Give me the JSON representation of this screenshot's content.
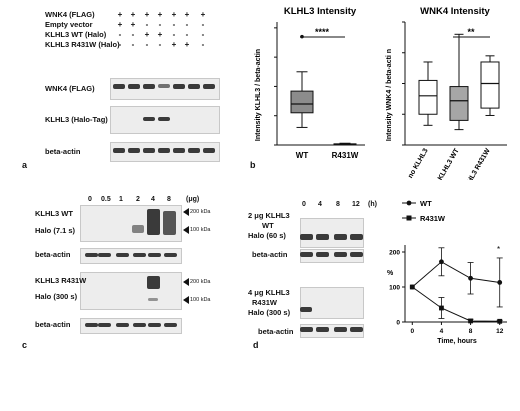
{
  "panel_a": {
    "letter": "a",
    "row_labels": [
      "WNK4 (FLAG)",
      "Empty vector",
      "KLHL3 WT (Halo)",
      "KLHL3 R431W (Halo)"
    ],
    "row_symbols": [
      [
        "+",
        "+",
        "+",
        "+",
        "+",
        "+",
        "+"
      ],
      [
        "+",
        "+",
        "-",
        "-",
        "-",
        "-",
        "-"
      ],
      [
        "-",
        "-",
        "+",
        "+",
        "-",
        "-",
        "-"
      ],
      [
        "-",
        "-",
        "-",
        "-",
        "+",
        "+",
        "-"
      ]
    ],
    "blot_labels": [
      "WNK4 (FLAG)",
      "KLHL3 (Halo-Tag)",
      "beta-actin"
    ]
  },
  "panel_b": {
    "letter": "b",
    "charts": [
      {
        "title": "KLHL3 Intensity",
        "ylabel": "Intensity KLHL3 / beta-actin",
        "categories": [
          "WT",
          "R431W"
        ],
        "significance": "****"
      },
      {
        "title": "WNK4 Intensity",
        "ylabel": "Intensity WNK4 / beta-acti n",
        "categories": [
          "no KLHL3",
          "KLHL3 WT",
          "KLHL3 R431W"
        ],
        "significance": "**"
      }
    ]
  },
  "panel_c": {
    "letter": "c",
    "doses": [
      "0",
      "0.5",
      "1",
      "2",
      "4",
      "8"
    ],
    "unit": "(μg)",
    "blots": [
      {
        "label1": "KLHL3 WT",
        "label2": "Halo (7.1 s)"
      },
      {
        "label1": "beta-actin",
        "label2": ""
      },
      {
        "label1": "KLHL3 R431W",
        "label2": "Halo (300 s)"
      },
      {
        "label1": "beta-actin",
        "label2": ""
      }
    ],
    "markers": [
      "200 kDa",
      "100 kDa",
      "200 kDa",
      "100 kDa"
    ]
  },
  "panel_d": {
    "letter": "d",
    "times": [
      "0",
      "4",
      "8",
      "12"
    ],
    "unit": "(h)",
    "wt_labels": [
      "2 μg KLHL3",
      "WT",
      "Halo (60 s)"
    ],
    "mut_labels": [
      "4 μg KLHL3",
      "R431W",
      "Halo (300 s)"
    ],
    "actin": "beta-actin",
    "legend": [
      "WT",
      "R431W"
    ],
    "asterisk": "*"
  },
  "chart_data": [
    {
      "type": "box",
      "title": "KLHL3 Intensity",
      "ylabel": "Intensity KLHL3 / beta-actin",
      "categories": [
        "WT",
        "R431W"
      ],
      "boxes": [
        {
          "name": "WT",
          "min": 0.3,
          "q1": 0.55,
          "median": 0.7,
          "q3": 0.92,
          "max": 1.25,
          "outliers": [
            1.85
          ],
          "fill": "#8c8c8c"
        },
        {
          "name": "R431W",
          "min": 0.0,
          "q1": 0.0,
          "median": 0.01,
          "q3": 0.02,
          "max": 0.03,
          "outliers": [],
          "fill": "#ffffff"
        }
      ],
      "ylim": [
        0,
        2.1
      ],
      "significance": "****"
    },
    {
      "type": "box",
      "title": "WNK4 Intensity",
      "ylabel": "Intensity WNK4 / beta-acti n",
      "categories": [
        "no KLHL3",
        "KLHL3 WT",
        "KLHL3 R431W"
      ],
      "boxes": [
        {
          "name": "no KLHL3",
          "min": 0.32,
          "q1": 0.5,
          "median": 0.8,
          "q3": 1.05,
          "max": 1.35,
          "outliers": [],
          "fill": "#ffffff"
        },
        {
          "name": "KLHL3 WT",
          "min": 0.25,
          "q1": 0.4,
          "median": 0.72,
          "q3": 0.95,
          "max": 1.8,
          "outliers": [],
          "fill": "#a6a6a6"
        },
        {
          "name": "KLHL3 R431W",
          "min": 0.48,
          "q1": 0.6,
          "median": 1.0,
          "q3": 1.35,
          "max": 1.45,
          "outliers": [],
          "fill": "#ffffff"
        }
      ],
      "ylim": [
        0,
        2.0
      ],
      "significance": "**"
    },
    {
      "type": "line",
      "ylabel": "%",
      "xlabel": "Time, hours",
      "x": [
        0,
        4,
        8,
        12
      ],
      "series": [
        {
          "name": "WT",
          "values": [
            100,
            172,
            125,
            113
          ],
          "err": [
            0,
            40,
            45,
            70
          ],
          "marker": "circle"
        },
        {
          "name": "R431W",
          "values": [
            100,
            40,
            3,
            2
          ],
          "err": [
            0,
            30,
            5,
            3
          ],
          "marker": "square"
        }
      ],
      "ylim": [
        0,
        200
      ],
      "xlim": [
        -1,
        13
      ],
      "yticks": [
        0,
        100,
        200
      ],
      "xticks": [
        0,
        4,
        8,
        12
      ]
    }
  ]
}
